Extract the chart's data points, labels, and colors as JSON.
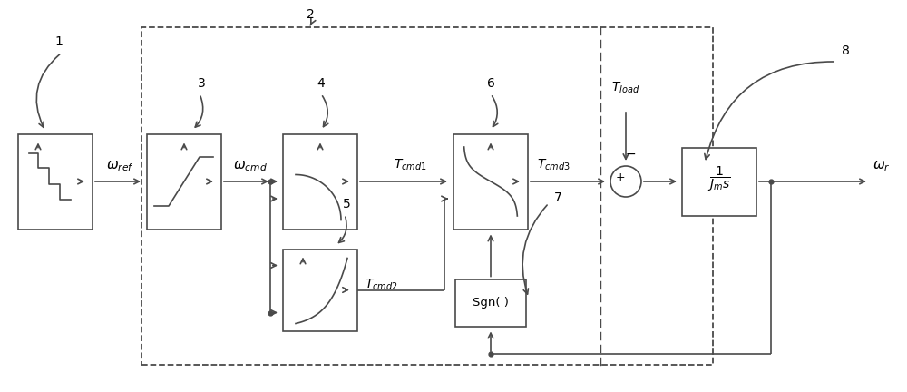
{
  "bg_color": "#ffffff",
  "lc": "#4a4a4a",
  "lw": 1.2,
  "omega_ref": "$\\omega_{ref}$",
  "omega_cmd": "$\\omega_{cmd}$",
  "tcmd1": "$T_{cmd1}$",
  "tcmd2": "$T_{cmd2}$",
  "tcmd3": "$T_{cmd3}$",
  "tload": "$T_{load}$",
  "omega_r": "$\\omega_r$",
  "sgn_label": "Sgn( )"
}
